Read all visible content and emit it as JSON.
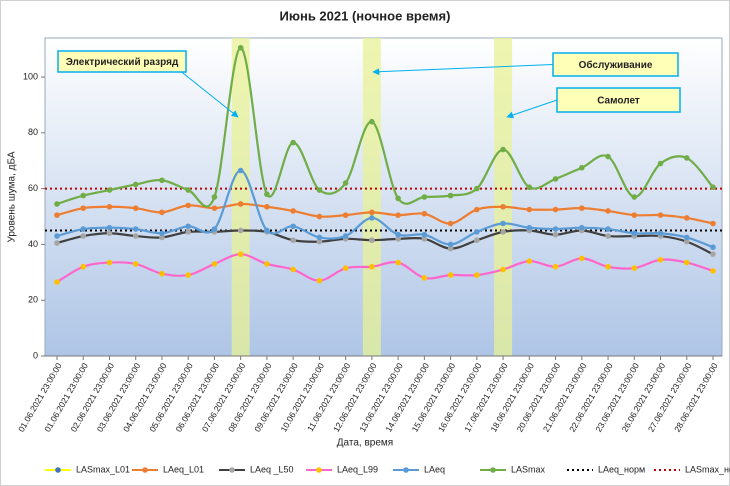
{
  "chart_data": {
    "type": "line",
    "title": "Июнь 2021 (ночное время)",
    "x_label": "Дата, время",
    "y_label": "Уровень шума, дБА",
    "categories": [
      "01.06.2021 23:00:00",
      "01.06.2021 23:00:00",
      "02.06.2021 23:00:00",
      "03.06.2021 23:00:00",
      "04.06.2021 23:00:00",
      "05.06.2021 23:00:00",
      "06.06.2021 23:00:00",
      "07.06.2021 23:00:00",
      "08.06.2021 23:00:00",
      "09.06.2021 23:00:00",
      "10.06.2021 23:00:00",
      "11.06.2021 23:00:00",
      "12.06.2021 23:00:00",
      "13.06.2021 23:00:00",
      "14.06.2021 23:00:00",
      "15.06.2021 23:00:00",
      "16.06.2021 23:00:00",
      "17.06.2021 23:00:00",
      "18.06.2021 23:00:00",
      "20.06.2021 23:00:00",
      "21.06.2021 23:00:00",
      "22.06.2021 23:00:00",
      "23.06.2021 23:00:00",
      "26.06.2021 23:00:00",
      "27.06.2021 23:00:00",
      "28.06.2021 23:00:00"
    ],
    "series": [
      {
        "name": "LASmax_L01",
        "color": "#ffff00",
        "marker_color": "#4472c4",
        "values": [
          null,
          null,
          null,
          null,
          null,
          null,
          null,
          null,
          null,
          null,
          null,
          null,
          null,
          null,
          null,
          null,
          null,
          null,
          null,
          null,
          null,
          null,
          null,
          null,
          null,
          null
        ]
      },
      {
        "name": "LAeq_L01",
        "color": "#ed7d31",
        "marker_color": "#ed7d31",
        "values": [
          50.5,
          53,
          53.5,
          53,
          51.5,
          54,
          53,
          54.5,
          53.5,
          52,
          50,
          50.5,
          51.5,
          50.5,
          51,
          47.5,
          52.5,
          53.5,
          52.5,
          52.5,
          53,
          52,
          50.5,
          50.5,
          49.5,
          47.5
        ]
      },
      {
        "name": "LAeq _L50",
        "color": "#404040",
        "marker_color": "#a5a5a5",
        "values": [
          40.5,
          43,
          44,
          43,
          42.5,
          44.5,
          44.5,
          45,
          44.5,
          41.5,
          41,
          42,
          41.5,
          42,
          42,
          38.5,
          41.5,
          44.5,
          45,
          43.5,
          45,
          43,
          43,
          43,
          41,
          36.5
        ]
      },
      {
        "name": "LAeq_L99",
        "color": "#ff66cc",
        "marker_color": "#ffc000",
        "values": [
          26.5,
          32,
          33.5,
          33,
          29.5,
          29,
          33,
          36.5,
          33,
          31,
          27,
          31.5,
          32,
          33.5,
          28,
          29,
          29,
          31,
          34,
          32,
          35,
          32,
          31.5,
          34.5,
          33.5,
          30.5
        ]
      },
      {
        "name": "LAeq",
        "color": "#5b9bd5",
        "marker_color": "#5b9bd5",
        "values": [
          43,
          45.5,
          46,
          45.5,
          44,
          46.5,
          45.5,
          66.5,
          45,
          46.5,
          42.5,
          43,
          49.5,
          43.5,
          43.5,
          40,
          44.5,
          47.5,
          46,
          45.5,
          46,
          45.5,
          44,
          44,
          42.5,
          39
        ]
      },
      {
        "name": "LASmax",
        "color": "#70ad47",
        "marker_color": "#70ad47",
        "values": [
          54.5,
          57.5,
          59.5,
          61.5,
          63,
          59.5,
          57,
          110.5,
          58,
          76.5,
          59.5,
          62,
          84,
          56.5,
          57,
          57.5,
          60,
          74,
          60.5,
          63.5,
          67.5,
          71.5,
          57,
          69,
          71,
          60.5
        ]
      }
    ],
    "reference_lines": [
      {
        "name": "LAeq_норм",
        "value": 45,
        "color": "#000000"
      },
      {
        "name": "LASmax_норм",
        "value": 60,
        "color": "#c00000"
      }
    ],
    "highlights": [
      "07.06.2021 23:00:00",
      "12.06.2021 23:00:00",
      "17.06.2021 23:00:00"
    ],
    "annotations": [
      {
        "text": "Электрический разряд",
        "target": "07.06.2021 23:00:00"
      },
      {
        "text": "Обслуживание",
        "target": "12.06.2021 23:00:00"
      },
      {
        "text": "Самолет",
        "target": "17.06.2021 23:00:00"
      }
    ],
    "ylim": [
      0,
      114
    ],
    "yticks": [
      0,
      20,
      40,
      60,
      80,
      100
    ],
    "legend": "bottom"
  }
}
